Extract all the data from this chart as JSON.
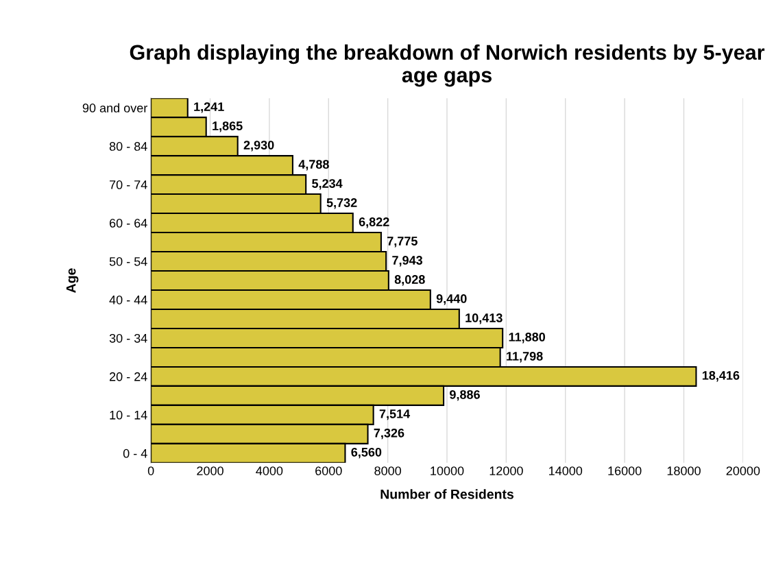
{
  "chart_data": {
    "type": "bar",
    "orientation": "horizontal",
    "title": "Graph displaying the breakdown of Norwich residents by 5-year age gaps",
    "xlabel": "Number of Residents",
    "ylabel": "Age",
    "categories": [
      "90 and over",
      null,
      "80 - 84",
      null,
      "70 - 74",
      null,
      "60 - 64",
      null,
      "50 - 54",
      null,
      "40 - 44",
      null,
      "30 - 34",
      null,
      "20 - 24",
      null,
      "10 - 14",
      null,
      "0 - 4"
    ],
    "values": [
      1241,
      1865,
      2930,
      4788,
      5234,
      5732,
      6822,
      7775,
      7943,
      8028,
      9440,
      10413,
      11880,
      11798,
      18416,
      9886,
      7514,
      7326,
      6560
    ],
    "color": "#d9c83f",
    "value_labels": [
      "1,241",
      "1,865",
      "2,930",
      "4,788",
      "5,234",
      "5,732",
      "6,822",
      "7,775",
      "7,943",
      "8,028",
      "9,440",
      "10,413",
      "11,880",
      "11,798",
      "18,416",
      "9,886",
      "7,514",
      "7,326",
      "6,560"
    ],
    "xlim": [
      0,
      20000
    ],
    "xticks": [
      0,
      2000,
      4000,
      6000,
      8000,
      10000,
      12000,
      14000,
      16000,
      18000,
      20000
    ],
    "grid": "x"
  }
}
